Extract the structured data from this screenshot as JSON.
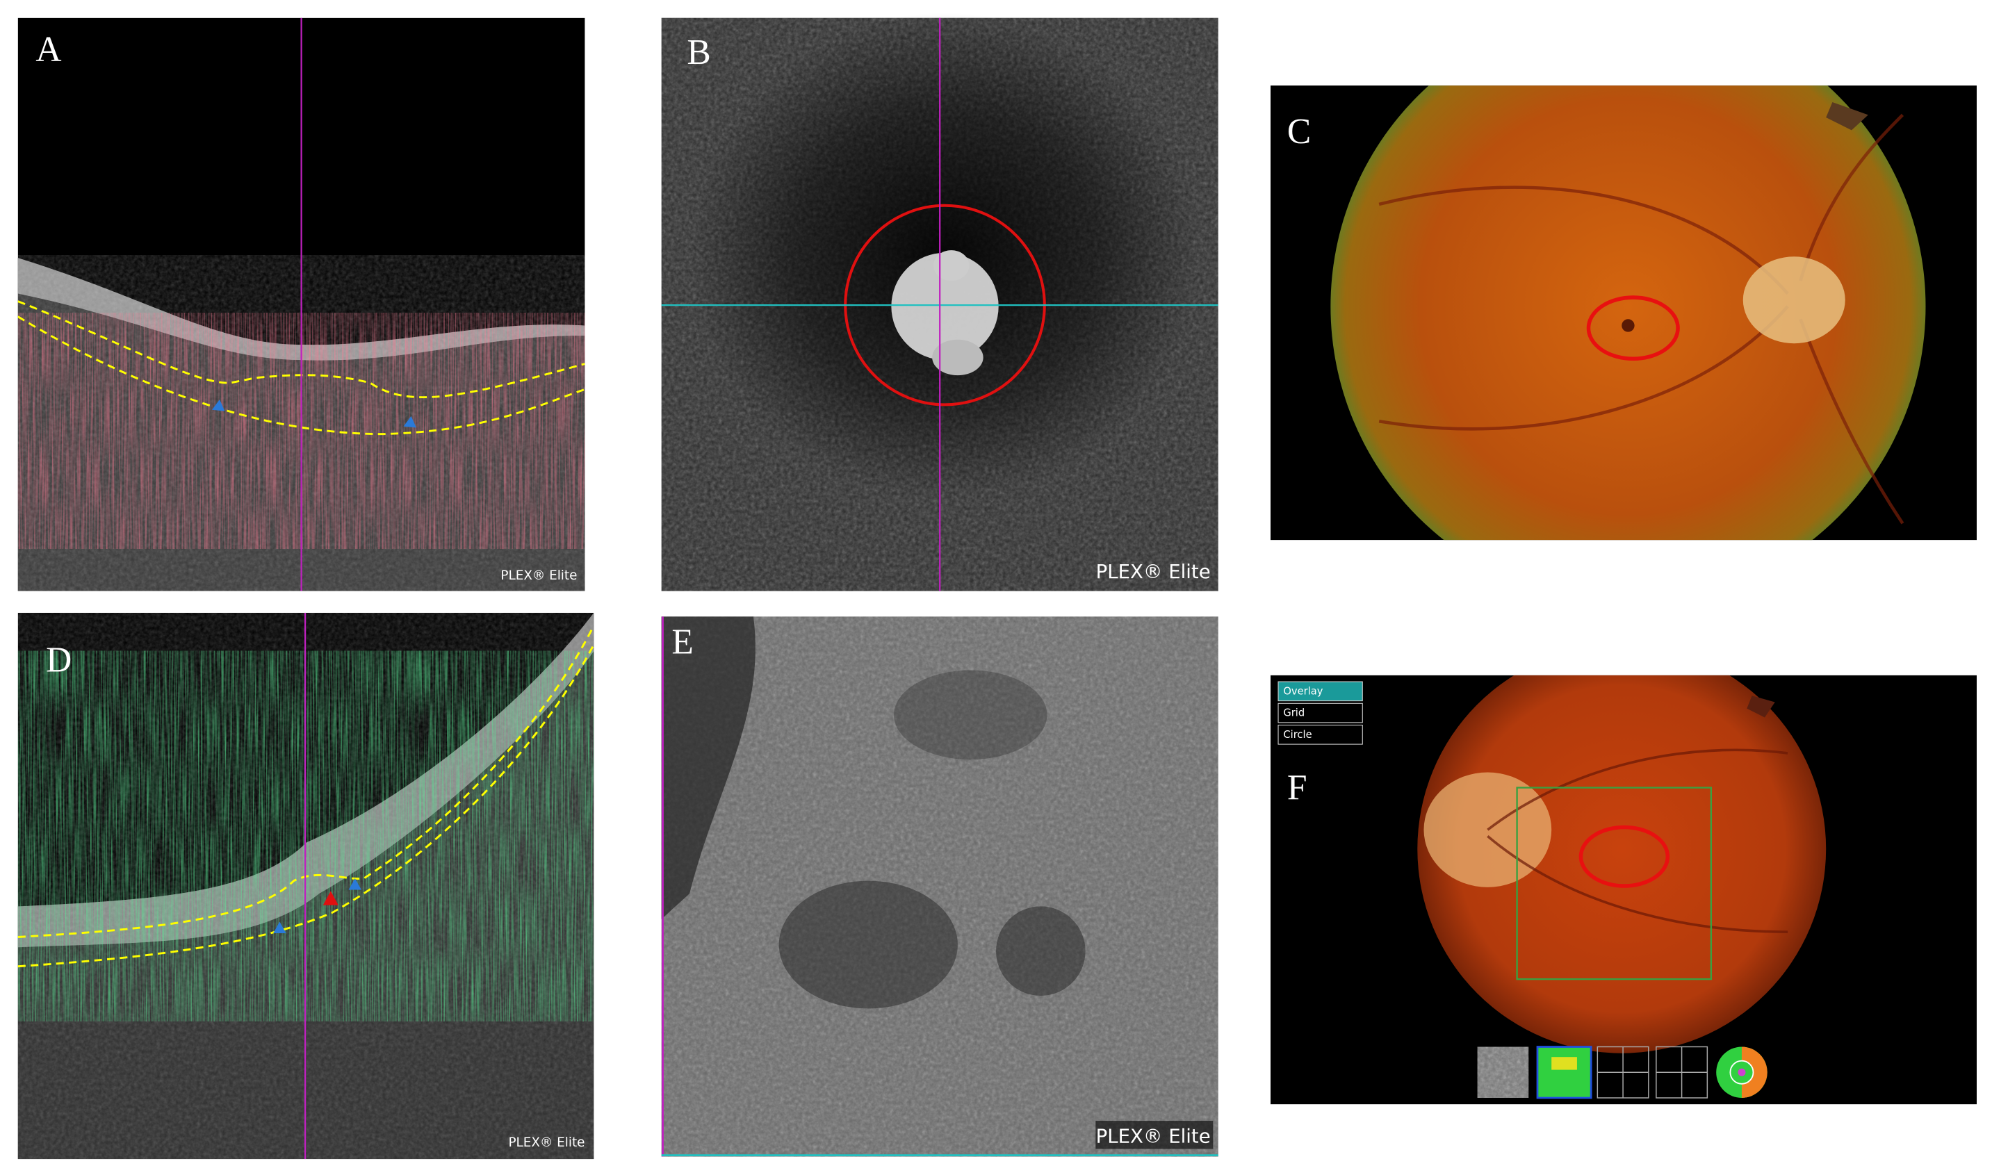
{
  "panels": [
    {
      "label": "A",
      "watermark": "PLEX® Elite"
    },
    {
      "label": "B",
      "watermark": "PLEX® Elite"
    },
    {
      "label": "C"
    },
    {
      "label": "D",
      "watermark": "PLEX® Elite"
    },
    {
      "label": "E",
      "watermark": "PLEX® Elite"
    },
    {
      "label": "F",
      "menu": [
        "Overlay",
        "Grid",
        "Circle"
      ]
    }
  ]
}
